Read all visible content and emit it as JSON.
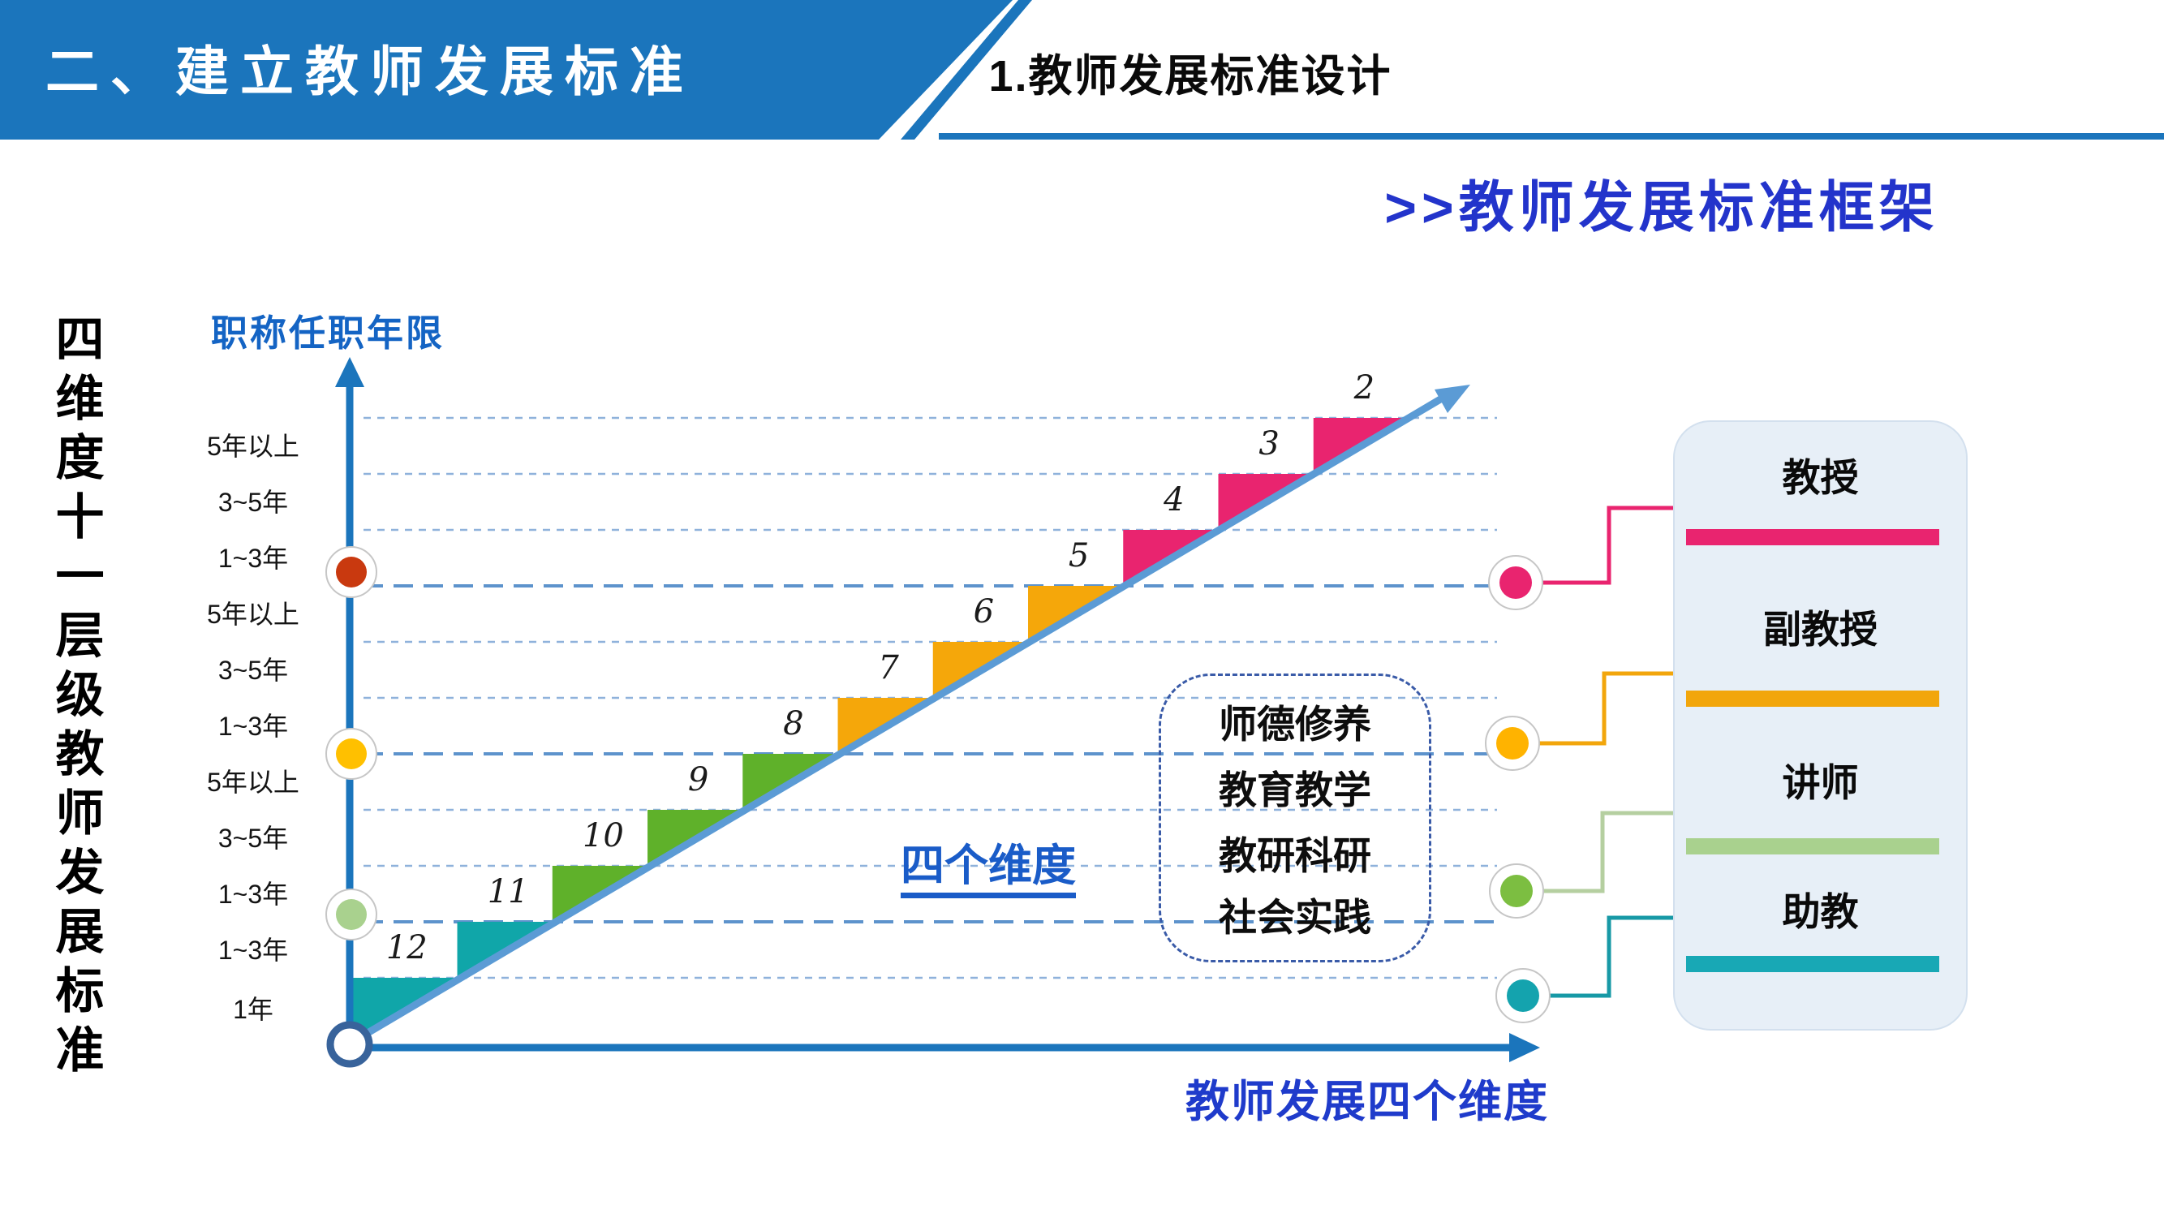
{
  "header": {
    "banner_title": "二、建立教师发展标准",
    "section_title": "1.教师发展标准设计",
    "framework_title": ">>教师发展标准框架"
  },
  "side_title": "四维度十一层级教师发展标准",
  "chart": {
    "y_axis_title": "职称任职年限",
    "x_axis_title": "教师发展四个维度",
    "dimension_note": "四个维度",
    "detail_box_lines": [
      "师德修养",
      "教育教学",
      "教研科研",
      "社会实践"
    ],
    "y_tick_labels": [
      "5年以上",
      "3~5年",
      "1~3年",
      "5年以上",
      "3~5年",
      "1~3年",
      "5年以上",
      "3~5年",
      "1~3年",
      "1~3年",
      "1年"
    ],
    "steps": [
      {
        "number": "2",
        "color": "#E9246F"
      },
      {
        "number": "3",
        "color": "#E9246F"
      },
      {
        "number": "4",
        "color": "#E9246F"
      },
      {
        "number": "5",
        "color": "#F5A70A"
      },
      {
        "number": "6",
        "color": "#F5A70A"
      },
      {
        "number": "7",
        "color": "#F5A70A"
      },
      {
        "number": "8",
        "color": "#5FB12A"
      },
      {
        "number": "9",
        "color": "#5FB12A"
      },
      {
        "number": "10",
        "color": "#5FB12A"
      },
      {
        "number": "11",
        "color": "#10A6A9"
      },
      {
        "number": "12",
        "color": "#10A6A9"
      }
    ],
    "axis_marker_colors": [
      "#C9390F",
      "#FFC000",
      "#A9D18E"
    ]
  },
  "legend": {
    "items": [
      {
        "label": "教授",
        "bar_color": "#E9246F",
        "dot_color": "#E9246F",
        "line_color": "#E9246F"
      },
      {
        "label": "副教授",
        "bar_color": "#F2A60C",
        "dot_color": "#FFB300",
        "line_color": "#F2A60C"
      },
      {
        "label": "讲师",
        "bar_color": "#A9D18E",
        "dot_color": "#7CBE41",
        "line_color": "#B5CFA0"
      },
      {
        "label": "助教",
        "bar_color": "#18A8B5",
        "dot_color": "#14A3AE",
        "line_color": "#1799A6"
      }
    ]
  },
  "colors": {
    "banner_blue": "#1B75BC",
    "axis_blue": "#1B75BC",
    "diagonal_blue": "#5B9BD5",
    "grid_blue": "#8FB2DB",
    "grid_bold_blue": "#5D93CC",
    "framework_title_blue": "#2334CB",
    "x_title_blue": "#1F3BCB",
    "panel_bg": "#E7EFF7"
  }
}
